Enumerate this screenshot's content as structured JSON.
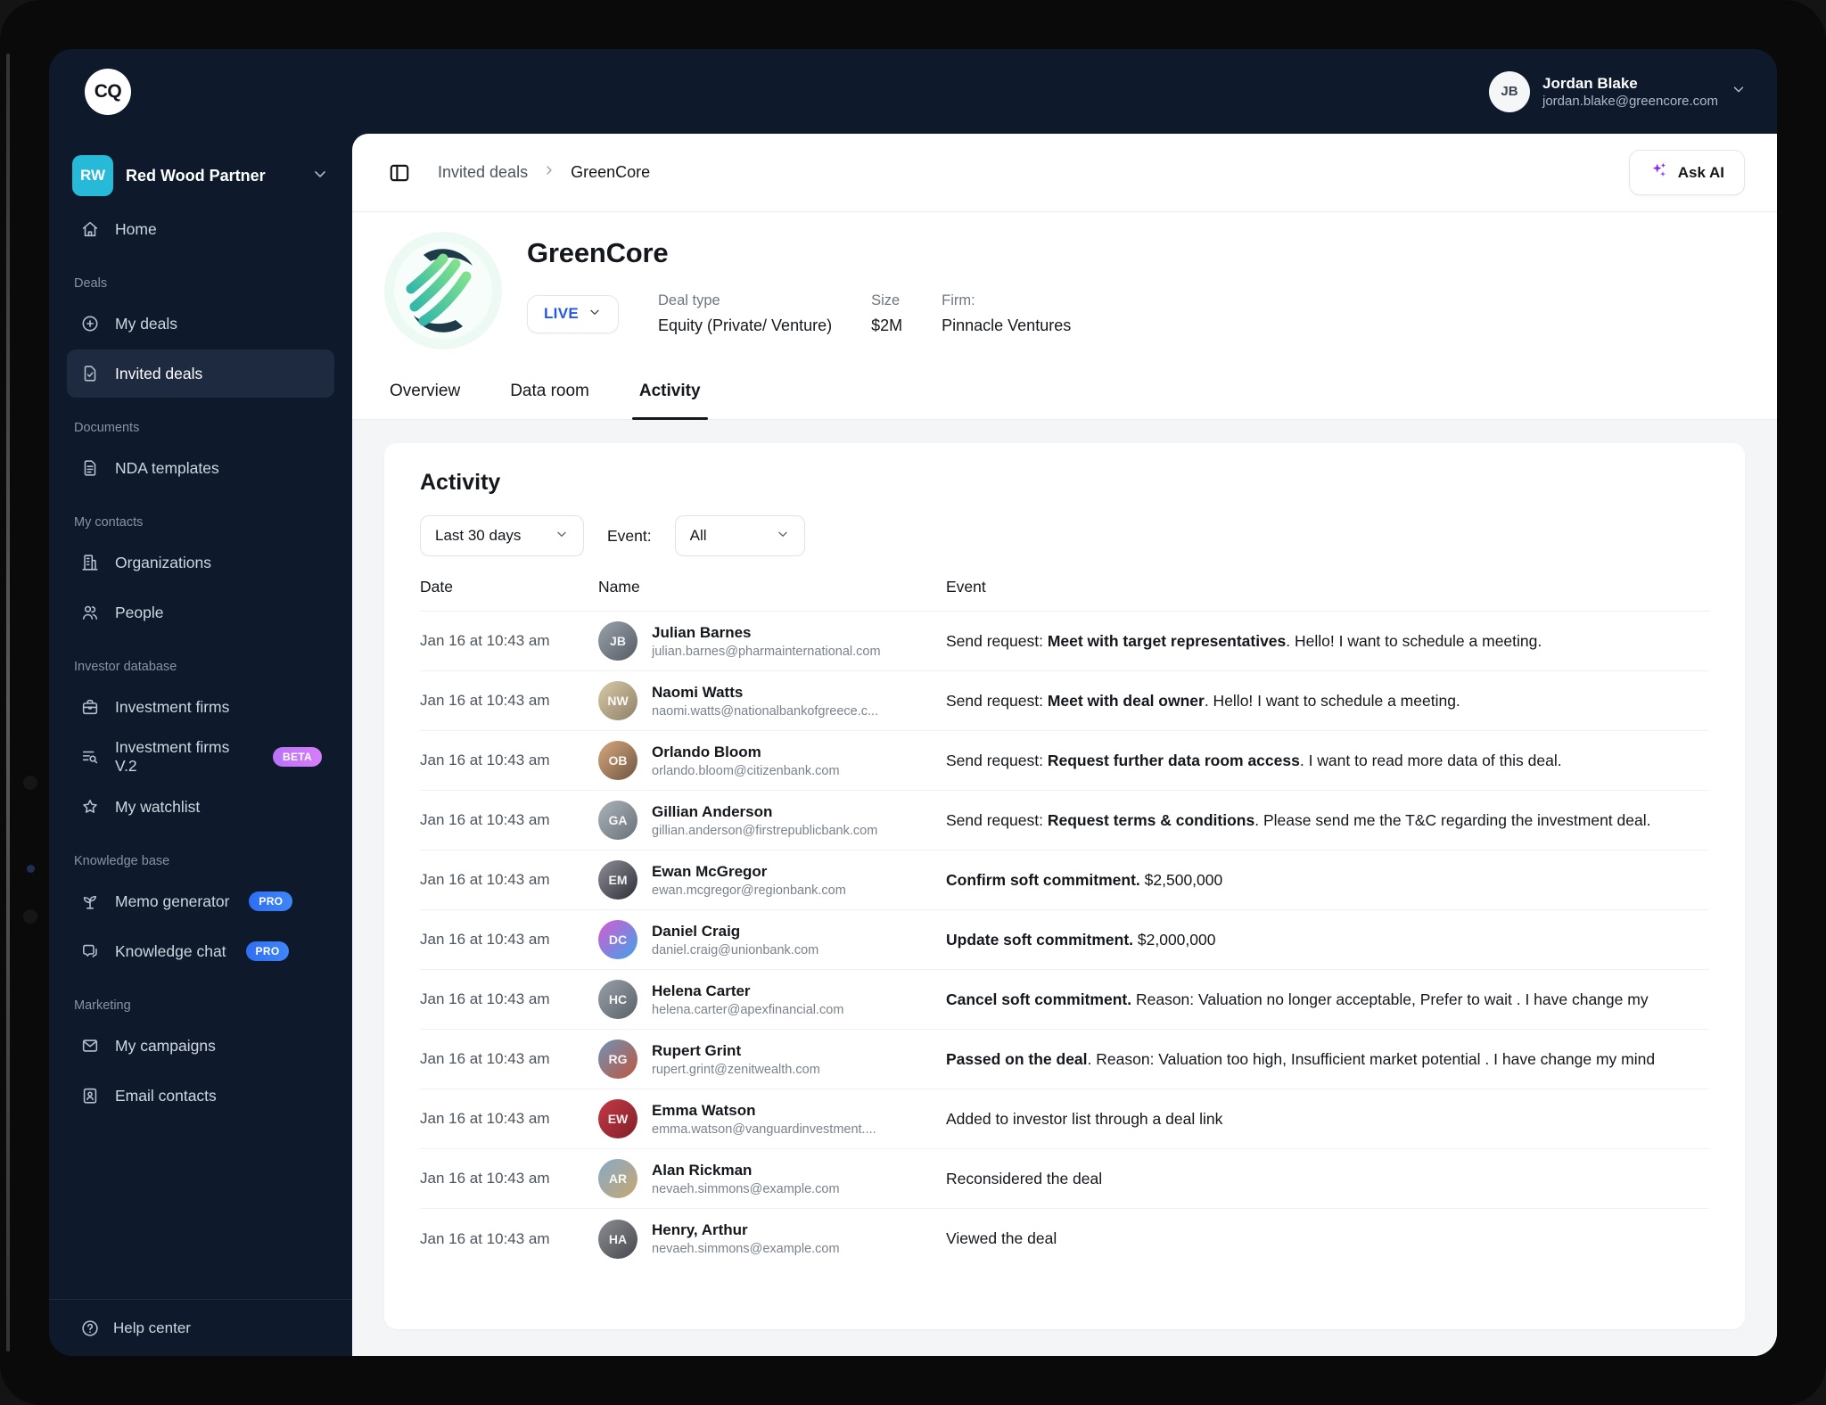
{
  "topbar": {
    "logo_text": "CQ",
    "user": {
      "initials": "JB",
      "name": "Jordan Blake",
      "email": "jordan.blake@greencore.com"
    }
  },
  "sidebar": {
    "workspace": {
      "initials": "RW",
      "name": "Red Wood Partner"
    },
    "sections": [
      {
        "label": "",
        "items": [
          {
            "label": "Home",
            "icon": "home-icon",
            "slug": "home"
          }
        ]
      },
      {
        "label": "Deals",
        "items": [
          {
            "label": "My deals",
            "icon": "my-deals-icon",
            "slug": "my-deals"
          },
          {
            "label": "Invited deals",
            "icon": "invited-deals-icon",
            "slug": "invited-deals",
            "active": true
          }
        ]
      },
      {
        "label": "Documents",
        "items": [
          {
            "label": "NDA templates",
            "icon": "document-icon",
            "slug": "nda-templates"
          }
        ]
      },
      {
        "label": "My contacts",
        "items": [
          {
            "label": "Organizations",
            "icon": "building-icon",
            "slug": "organizations"
          },
          {
            "label": "People",
            "icon": "people-icon",
            "slug": "people"
          }
        ]
      },
      {
        "label": "Investor database",
        "items": [
          {
            "label": "Investment firms",
            "icon": "briefcase-icon",
            "slug": "investment-firms"
          },
          {
            "label": "Investment firms V.2",
            "icon": "list-search-icon",
            "slug": "investment-firms-v2",
            "badge": "BETA"
          },
          {
            "label": "My watchlist",
            "icon": "star-icon",
            "slug": "my-watchlist"
          }
        ]
      },
      {
        "label": "Knowledge base",
        "items": [
          {
            "label": "Memo generator",
            "icon": "sprout-icon",
            "slug": "memo-generator",
            "badge": "PRO"
          },
          {
            "label": "Knowledge chat",
            "icon": "chat-icon",
            "slug": "knowledge-chat",
            "badge": "PRO"
          }
        ]
      },
      {
        "label": "Marketing",
        "items": [
          {
            "label": "My campaigns",
            "icon": "mail-icon",
            "slug": "my-campaigns"
          },
          {
            "label": "Email contacts",
            "icon": "contact-card-icon",
            "slug": "email-contacts"
          }
        ]
      }
    ],
    "footer_label": "Help center"
  },
  "breadcrumb": {
    "items": [
      "Invited deals",
      "GreenCore"
    ]
  },
  "ask_ai_label": "Ask AI",
  "deal": {
    "name": "GreenCore",
    "status": "LIVE",
    "status_color": "#2457e6",
    "fields": [
      {
        "label": "Deal type",
        "value": "Equity (Private/ Venture)"
      },
      {
        "label": "Size",
        "value": "$2M"
      },
      {
        "label": "Firm:",
        "value": "Pinnacle Ventures"
      }
    ]
  },
  "tabs": [
    {
      "label": "Overview"
    },
    {
      "label": "Data room"
    },
    {
      "label": "Activity",
      "active": true
    }
  ],
  "activity": {
    "title": "Activity",
    "filters": {
      "date_range": "Last 30 days",
      "event_label": "Event:",
      "event_value": "All"
    },
    "columns": [
      "Date",
      "Name",
      "Event"
    ],
    "rows": [
      {
        "date": "Jan 16 at 10:43 am",
        "name": "Julian Barnes",
        "email": "julian.barnes@pharmainternational.com",
        "initials": "JB",
        "avatar_colors": [
          "#9aa2ab",
          "#545b64"
        ],
        "event": {
          "prefix": "Send request: ",
          "bold": "Meet with target representatives",
          "rest": ". Hello! I want to schedule a meeting."
        }
      },
      {
        "date": "Jan 16 at 10:43 am",
        "name": "Naomi Watts",
        "email": "naomi.watts@nationalbankofgreece.c...",
        "initials": "NW",
        "avatar_colors": [
          "#d9c9a8",
          "#8d8066"
        ],
        "event": {
          "prefix": "Send request: ",
          "bold": "Meet with deal owner",
          "rest": ". Hello! I want to schedule a meeting."
        }
      },
      {
        "date": "Jan 16 at 10:43 am",
        "name": "Orlando Bloom",
        "email": "orlando.bloom@citizenbank.com",
        "initials": "OB",
        "avatar_colors": [
          "#d8a87e",
          "#6e5540"
        ],
        "event": {
          "prefix": "Send request: ",
          "bold": "Request further data room access",
          "rest": ". I want to read more data of this deal."
        }
      },
      {
        "date": "Jan 16 at 10:43 am",
        "name": "Gillian Anderson",
        "email": "gillian.anderson@firstrepublicbank.com",
        "initials": "GA",
        "avatar_colors": [
          "#aab3bb",
          "#6a7077"
        ],
        "event": {
          "prefix": "Send request: ",
          "bold": "Request terms & conditions",
          "rest": ". Please send me the T&C regarding the investment deal."
        }
      },
      {
        "date": "Jan 16 at 10:43 am",
        "name": "Ewan McGregor",
        "email": "ewan.mcgregor@regionbank.com",
        "initials": "EM",
        "avatar_colors": [
          "#8e8e99",
          "#2e2e38"
        ],
        "event": {
          "prefix": "",
          "bold": "Confirm soft commitment.",
          "rest": " $2,500,000"
        }
      },
      {
        "date": "Jan 16 at 10:43 am",
        "name": "Daniel Craig",
        "email": "daniel.craig@unionbank.com",
        "initials": "DC",
        "avatar_colors": [
          "#d55cd0",
          "#3fa2e8"
        ],
        "event": {
          "prefix": "",
          "bold": "Update soft commitment.",
          "rest": " $2,000,000"
        }
      },
      {
        "date": "Jan 16 at 10:43 am",
        "name": "Helena Carter",
        "email": "helena.carter@apexfinancial.com",
        "initials": "HC",
        "avatar_colors": [
          "#99a0a8",
          "#596068"
        ],
        "event": {
          "prefix": "",
          "bold": "Cancel soft commitment.",
          "rest": " Reason: Valuation no longer acceptable, Prefer to wait . I have change my "
        }
      },
      {
        "date": "Jan 16 at 10:43 am",
        "name": "Rupert Grint",
        "email": "rupert.grint@zenitwealth.com",
        "initials": "RG",
        "avatar_colors": [
          "#6e93b6",
          "#c0563f"
        ],
        "event": {
          "prefix": "",
          "bold": "Passed on the deal",
          "rest": ". Reason: Valuation too high, Insufficient market potential . I have change my mind"
        }
      },
      {
        "date": "Jan 16 at 10:43 am",
        "name": "Emma Watson",
        "email": "emma.watson@vanguardinvestment....",
        "initials": "EW",
        "avatar_colors": [
          "#c43a46",
          "#801f2a"
        ],
        "event": {
          "prefix": "",
          "bold": "",
          "rest": "Added to investor list through a deal link"
        }
      },
      {
        "date": "Jan 16 at 10:43 am",
        "name": "Alan Rickman",
        "email": "nevaeh.simmons@example.com",
        "initials": "AR",
        "avatar_colors": [
          "#86a9c9",
          "#c8a86d"
        ],
        "event": {
          "prefix": "",
          "bold": "",
          "rest": "Reconsidered the deal"
        }
      },
      {
        "date": "Jan 16 at 10:43 am",
        "name": "Henry, Arthur",
        "email": "nevaeh.simmons@example.com",
        "initials": "HA",
        "avatar_colors": [
          "#8b8d92",
          "#46484d"
        ],
        "event": {
          "prefix": "",
          "bold": "",
          "rest": "Viewed the deal"
        }
      }
    ]
  }
}
